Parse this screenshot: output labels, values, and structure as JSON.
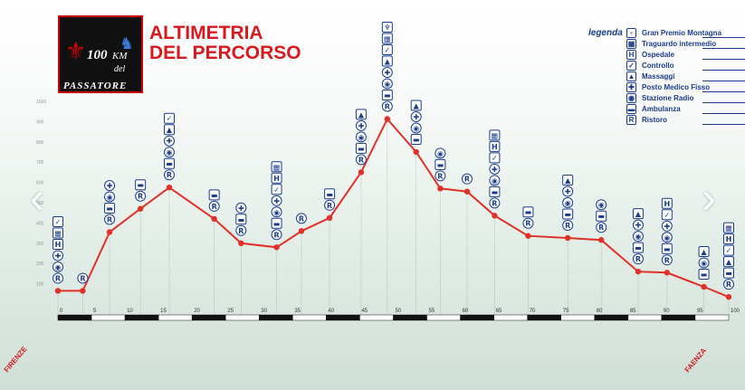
{
  "title_line1": "ALTIMETRIA",
  "title_line2": "DEL PERCORSO",
  "logo": {
    "number": "100",
    "unit": "KM",
    "word": "del",
    "name": "PASSATORE"
  },
  "legend": {
    "title": "legenda",
    "items": [
      {
        "label": "Gran Premio Montagna",
        "icon": "trophy-icon",
        "glyph": "♆"
      },
      {
        "label": "Traguardo intermedio",
        "icon": "checkered-flag-icon",
        "glyph": "▦"
      },
      {
        "label": "Ospedale",
        "icon": "hospital-icon",
        "glyph": "H"
      },
      {
        "label": "Controllo",
        "icon": "check-icon",
        "glyph": "✓"
      },
      {
        "label": "Massaggi",
        "icon": "massage-icon",
        "glyph": "▲"
      },
      {
        "label": "Posto Medico Fisso",
        "icon": "medical-cross-icon",
        "glyph": "✚"
      },
      {
        "label": "Stazione Radio",
        "icon": "radio-icon",
        "glyph": "◉"
      },
      {
        "label": "Ambulanza",
        "icon": "ambulance-icon",
        "glyph": "▬"
      },
      {
        "label": "Ristoro",
        "icon": "refreshment-icon",
        "glyph": "R"
      }
    ]
  },
  "nav": {
    "prev": "‹",
    "next": "›"
  },
  "chart_data": {
    "type": "line",
    "title": "ALTIMETRIA DEL PERCORSO",
    "x_unit": "km",
    "xlim": [
      0,
      100
    ],
    "ylim": [
      0,
      1000
    ],
    "x_ticks": [
      "0",
      "5",
      "10",
      "15",
      "20",
      "25",
      "30",
      "35",
      "40",
      "45",
      "50",
      "55",
      "60",
      "65",
      "70",
      "75",
      "80",
      "85",
      "90",
      "95",
      "100"
    ],
    "y_ticks": [
      "100",
      "200",
      "300",
      "400",
      "500",
      "600",
      "700",
      "800",
      "900",
      "1000"
    ],
    "start_label": "FIRENZE",
    "end_label": "FAENZA",
    "color": "#e03028",
    "points": [
      {
        "x": 0,
        "y": 65,
        "icons": [
          "check",
          "checkered",
          "hospital",
          "cross",
          "radio",
          "refresh"
        ]
      },
      {
        "x": 3.7,
        "y": 65,
        "icons": [
          "refresh"
        ]
      },
      {
        "x": 7.7,
        "y": 355,
        "icons": [
          "cross",
          "radio",
          "ambulance",
          "refresh"
        ]
      },
      {
        "x": 12.3,
        "y": 470,
        "icons": [
          "ambulance",
          "refresh"
        ]
      },
      {
        "x": 16.6,
        "y": 575,
        "icons": [
          "check",
          "massage",
          "cross",
          "radio",
          "ambulance",
          "refresh"
        ]
      },
      {
        "x": 23.3,
        "y": 420,
        "icons": [
          "ambulance",
          "refresh"
        ]
      },
      {
        "x": 27.3,
        "y": 300,
        "icons": [
          "cross",
          "ambulance",
          "refresh"
        ]
      },
      {
        "x": 32.6,
        "y": 280,
        "icons": [
          "checkered",
          "hospital",
          "check",
          "cross",
          "radio",
          "ambulance",
          "refresh"
        ]
      },
      {
        "x": 36.3,
        "y": 360,
        "icons": [
          "refresh"
        ]
      },
      {
        "x": 40.5,
        "y": 425,
        "icons": [
          "ambulance",
          "refresh"
        ]
      },
      {
        "x": 45.2,
        "y": 650,
        "icons": [
          "massage",
          "cross",
          "radio",
          "ambulance",
          "refresh"
        ]
      },
      {
        "x": 49.1,
        "y": 913,
        "icons": [
          "trophy",
          "checkered",
          "check",
          "massage",
          "cross",
          "radio",
          "ambulance",
          "refresh"
        ]
      },
      {
        "x": 53.4,
        "y": 750,
        "icons": [
          "massage",
          "cross",
          "radio",
          "ambulance"
        ]
      },
      {
        "x": 57,
        "y": 570,
        "icons": [
          "radio",
          "ambulance",
          "refresh"
        ]
      },
      {
        "x": 61,
        "y": 555,
        "icons": [
          "refresh"
        ]
      },
      {
        "x": 65.1,
        "y": 436,
        "icons": [
          "checkered",
          "hospital",
          "check",
          "cross",
          "radio",
          "ambulance",
          "refresh"
        ]
      },
      {
        "x": 70.1,
        "y": 336,
        "icons": [
          "ambulance",
          "refresh"
        ]
      },
      {
        "x": 76,
        "y": 326,
        "icons": [
          "massage",
          "cross",
          "radio",
          "ambulance",
          "refresh"
        ]
      },
      {
        "x": 81,
        "y": 316,
        "icons": [
          "radio",
          "ambulance",
          "refresh"
        ]
      },
      {
        "x": 86.5,
        "y": 160,
        "icons": [
          "massage",
          "cross",
          "radio",
          "ambulance",
          "refresh"
        ]
      },
      {
        "x": 90.8,
        "y": 155,
        "icons": [
          "hospital",
          "check",
          "cross",
          "radio",
          "ambulance",
          "refresh"
        ]
      },
      {
        "x": 96.3,
        "y": 85,
        "icons": [
          "massage",
          "radio",
          "ambulance"
        ]
      },
      {
        "x": 100,
        "y": 35,
        "icons": [
          "checkered",
          "hospital",
          "check",
          "massage",
          "ambulance",
          "refresh"
        ]
      }
    ]
  }
}
